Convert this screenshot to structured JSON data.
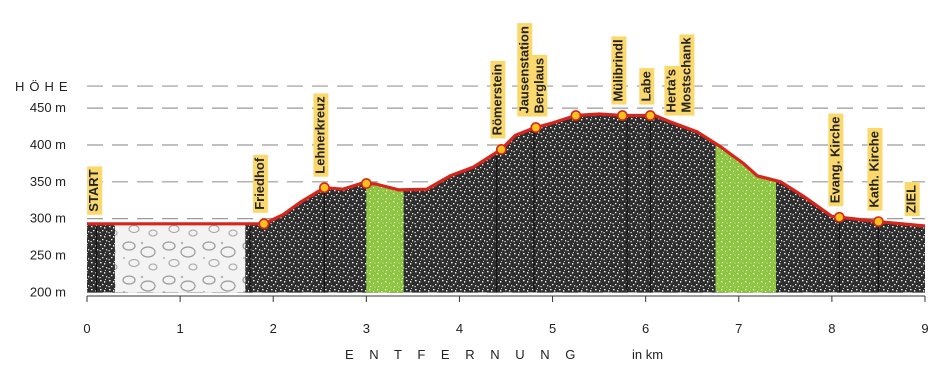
{
  "chart_data": {
    "type": "area",
    "title": "",
    "ylabel": "HÖHE",
    "xlabel": "E N T F E R N U N G",
    "xunit": "in km",
    "xlim": [
      0,
      9
    ],
    "ylim": [
      195,
      495
    ],
    "yticks": [
      200,
      250,
      300,
      350,
      400,
      450
    ],
    "ytick_labels": [
      "200 m",
      "250 m",
      "300 m",
      "350 m",
      "400 m",
      "450 m"
    ],
    "xticks": [
      0,
      1,
      2,
      3,
      4,
      5,
      6,
      7,
      8,
      9
    ],
    "xtick_labels": [
      "0",
      "1",
      "2",
      "3",
      "4",
      "5",
      "6",
      "7",
      "8",
      "9"
    ],
    "profile": [
      {
        "x": 0.0,
        "y": 293
      },
      {
        "x": 1.7,
        "y": 293
      },
      {
        "x": 1.9,
        "y": 293
      },
      {
        "x": 2.1,
        "y": 305
      },
      {
        "x": 2.3,
        "y": 323
      },
      {
        "x": 2.55,
        "y": 342
      },
      {
        "x": 2.75,
        "y": 340
      },
      {
        "x": 2.95,
        "y": 348
      },
      {
        "x": 3.1,
        "y": 347
      },
      {
        "x": 3.35,
        "y": 339
      },
      {
        "x": 3.65,
        "y": 340
      },
      {
        "x": 3.9,
        "y": 358
      },
      {
        "x": 4.15,
        "y": 370
      },
      {
        "x": 4.45,
        "y": 394
      },
      {
        "x": 4.6,
        "y": 413
      },
      {
        "x": 4.8,
        "y": 423
      },
      {
        "x": 5.0,
        "y": 430
      },
      {
        "x": 5.25,
        "y": 440
      },
      {
        "x": 5.5,
        "y": 442
      },
      {
        "x": 5.75,
        "y": 440
      },
      {
        "x": 6.1,
        "y": 440
      },
      {
        "x": 6.25,
        "y": 432
      },
      {
        "x": 6.55,
        "y": 418
      },
      {
        "x": 6.8,
        "y": 398
      },
      {
        "x": 7.05,
        "y": 375
      },
      {
        "x": 7.2,
        "y": 358
      },
      {
        "x": 7.45,
        "y": 350
      },
      {
        "x": 7.7,
        "y": 330
      },
      {
        "x": 8.0,
        "y": 303
      },
      {
        "x": 8.5,
        "y": 296
      },
      {
        "x": 9.0,
        "y": 290
      }
    ],
    "base_y": 200,
    "texture_bands": [
      {
        "x0": 0.3,
        "x1": 1.7,
        "type": "light-stones"
      },
      {
        "x0": 3.0,
        "x1": 3.4,
        "type": "green"
      },
      {
        "x0": 6.75,
        "x1": 7.4,
        "type": "green"
      }
    ],
    "drop_lines_x": [
      0.1,
      1.75,
      2.55,
      4.4,
      4.8,
      5.8,
      6.05,
      8.08,
      8.5
    ],
    "points_of_interest": [
      {
        "label": "START",
        "x": 0.12,
        "marker": false
      },
      {
        "label": "Friedhof",
        "x": 1.9,
        "marker": true
      },
      {
        "label": "Lehnerkreuz",
        "x": 2.55,
        "marker": true
      },
      {
        "label": "",
        "x": 3.0,
        "marker": true
      },
      {
        "label": "Römerstein",
        "x": 4.45,
        "marker": true
      },
      {
        "label": "Jausenstation Berglaus",
        "x": 4.82,
        "marker": true
      },
      {
        "label": "",
        "x": 5.25,
        "marker": true
      },
      {
        "label": "Mülibrindl",
        "x": 5.75,
        "marker": true
      },
      {
        "label": "Labe",
        "x": 6.05,
        "marker": true
      },
      {
        "label": "Herta's Mostschank",
        "x": 6.4,
        "marker": false
      },
      {
        "label": "Evang. Kirche",
        "x": 8.08,
        "marker": true
      },
      {
        "label": "Kath. Kirche",
        "x": 8.5,
        "marker": true
      },
      {
        "label": "ZIEL",
        "x": 8.9,
        "marker": false
      }
    ],
    "legend": "none",
    "grid": "dashed horizontal",
    "colors": {
      "profile_line": "#d9241c",
      "marker_fill": "#f7c31a",
      "label_background": "#fbd86b",
      "green_band": "#8cc63f",
      "terrain_dark": "#2b2b2b",
      "terrain_light": "#f2f2f2",
      "grid": "#9a9a9a"
    }
  }
}
